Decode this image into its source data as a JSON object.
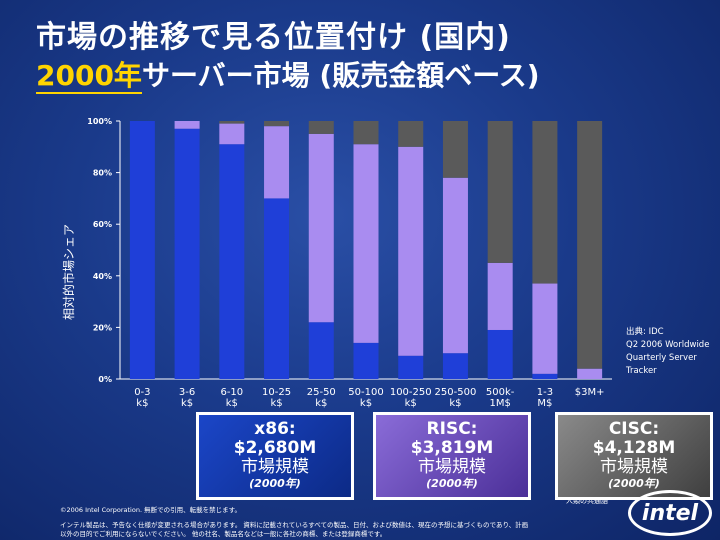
{
  "title_line1": "市場の推移で見る位置付け (国内)",
  "title_year": "2000年",
  "title_rest": "サーバー市場 (販売金額ベース)",
  "colors": {
    "x86": "#1f3fd8",
    "risc": "#a98cf0",
    "cisc": "#5a5a5a"
  },
  "chart_data": {
    "type": "bar",
    "stacked": true,
    "ylabel": "相対的市場シェア",
    "ylim": [
      0,
      100
    ],
    "yticks": [
      "0%",
      "20%",
      "40%",
      "60%",
      "80%",
      "100%"
    ],
    "categories": [
      "0-3 k$",
      "3-6 k$",
      "6-10 k$",
      "10-25 k$",
      "25-50 k$",
      "50-100 k$",
      "100-250 k$",
      "250-500 k$",
      "500k-1M$",
      "1-3 M$",
      "$3M+"
    ],
    "category_labels": [
      [
        "0-3",
        "k$"
      ],
      [
        "3-6",
        "k$"
      ],
      [
        "6-10",
        "k$"
      ],
      [
        "10-25",
        "k$"
      ],
      [
        "25-50",
        "k$"
      ],
      [
        "50-100",
        "k$"
      ],
      [
        "100-250",
        "k$"
      ],
      [
        "250-500",
        "k$"
      ],
      [
        "500k-",
        "1M$"
      ],
      [
        "1-3",
        "M$"
      ],
      [
        "$3M+"
      ]
    ],
    "series": [
      {
        "name": "x86",
        "values": [
          100,
          97,
          91,
          70,
          22,
          14,
          9,
          10,
          19,
          2,
          0
        ]
      },
      {
        "name": "RISC",
        "values": [
          0,
          3,
          8,
          28,
          73,
          77,
          81,
          68,
          26,
          35,
          4
        ]
      },
      {
        "name": "CISC",
        "values": [
          0,
          0,
          1,
          2,
          5,
          9,
          10,
          22,
          55,
          63,
          96
        ]
      }
    ]
  },
  "source": [
    "出典: IDC",
    "Q2 2006 Worldwide",
    "Quarterly Server",
    "Tracker"
  ],
  "boxes": [
    {
      "head": "x86:",
      "value": "$2,680M",
      "label": "市場規模",
      "year": "(2000年)"
    },
    {
      "head": "RISC:",
      "value": "$3,819M",
      "label": "市場規模",
      "year": "(2000年)"
    },
    {
      "head": "CISC:",
      "value": "$4,128M",
      "label": "市場規模",
      "year": "(2000年)"
    }
  ],
  "footer": {
    "line1": "©2006 Intel Corporation. 無断での引用、転載を禁じます。",
    "line2": "インテル製品は、予告なく仕様が変更される場合があります。 資料に記載されているすべての製品、日付、および数値は、現在の予想に基づくものであり、計画",
    "line3": "以外の目的でご利用にならないでください。 他の社名、製品名などは一般に各社の商標、または登録商標です。"
  },
  "logo_text": "intel",
  "logo_tag": "人類の共通語"
}
